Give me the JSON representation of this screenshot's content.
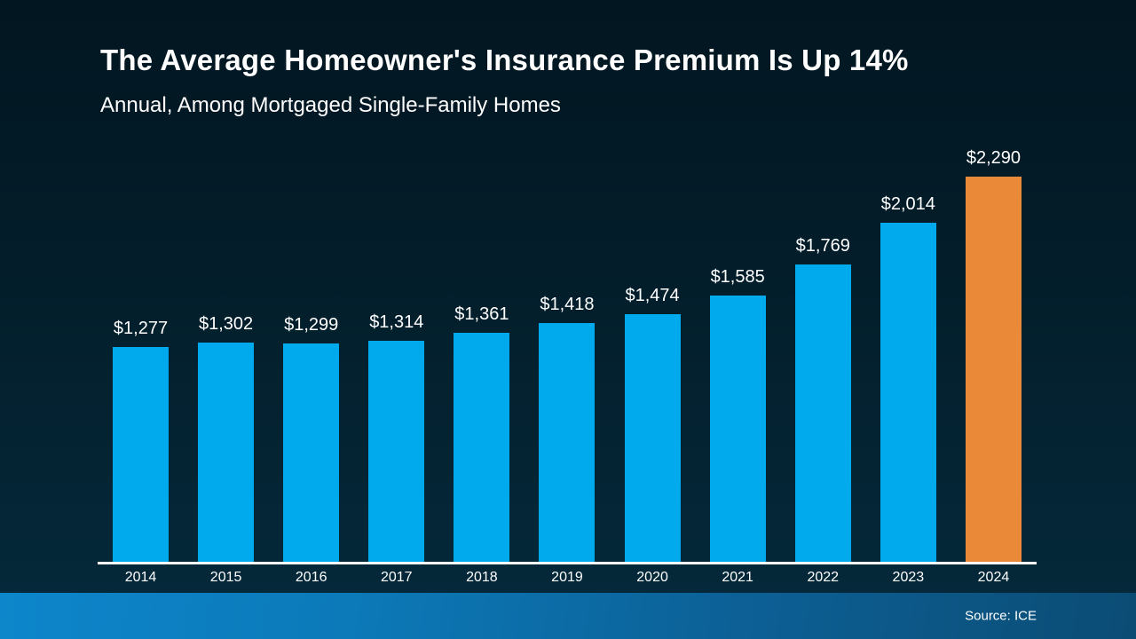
{
  "slide": {
    "title": "The Average Homeowner's Insurance Premium Is Up 14%",
    "subtitle": "Annual, Among Mortgaged Single-Family Homes",
    "source": "Source: ICE"
  },
  "colors": {
    "background_top": "#021621",
    "background_bottom": "#052a3c",
    "bar": "#00aaec",
    "bar_highlight": "#ea8a38",
    "axis_line": "#ffffff",
    "text": "#ffffff",
    "footer_left": "#0d86cb",
    "footer_right": "#0b4c74"
  },
  "chart_data": {
    "type": "bar",
    "title": "The Average Homeowner's Insurance Premium Is Up 14%",
    "subtitle": "Annual, Among Mortgaged Single-Family Homes",
    "categories": [
      "2014",
      "2015",
      "2016",
      "2017",
      "2018",
      "2019",
      "2020",
      "2021",
      "2022",
      "2023",
      "2024"
    ],
    "values": [
      1277,
      1302,
      1299,
      1314,
      1361,
      1418,
      1474,
      1585,
      1769,
      2014,
      2290
    ],
    "labels": [
      "$1,277",
      "$1,302",
      "$1,299",
      "$1,314",
      "$1,361",
      "$1,418",
      "$1,474",
      "$1,585",
      "$1,769",
      "$2,014",
      "$2,290"
    ],
    "highlight_index": 10,
    "bar_color": "#00aaec",
    "highlight_color": "#ea8a38",
    "xlabel": "",
    "ylabel": "",
    "ylim": [
      0,
      2290
    ],
    "grid": false,
    "legend": false,
    "source": "Source: ICE"
  }
}
